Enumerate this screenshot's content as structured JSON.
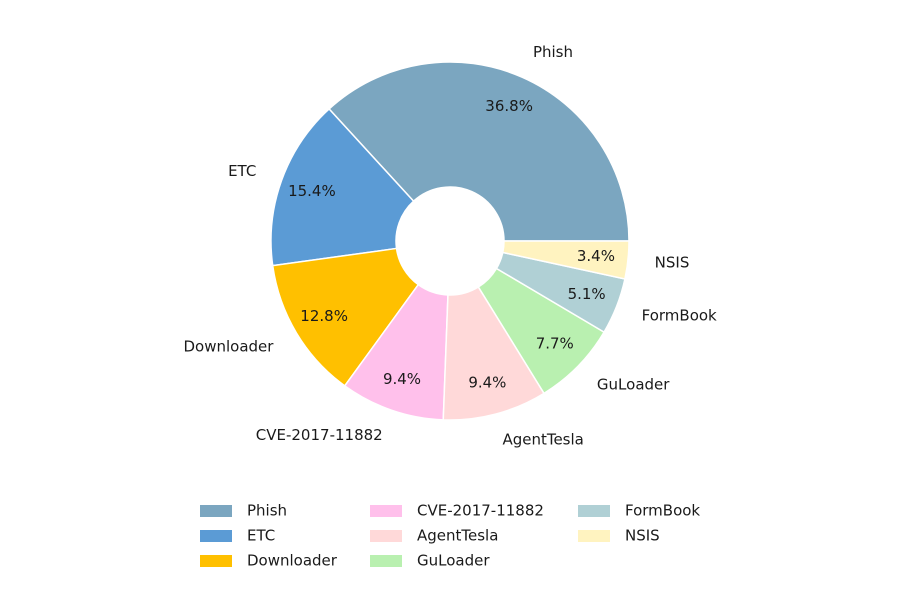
{
  "chart_data": {
    "type": "pie",
    "categories": [
      "Phish",
      "ETC",
      "Downloader",
      "CVE-2017-11882",
      "AgentTesla",
      "GuLoader",
      "FormBook",
      "NSIS"
    ],
    "values": [
      36.8,
      15.4,
      12.8,
      9.4,
      9.4,
      7.7,
      5.1,
      3.4
    ],
    "value_labels": [
      "36.8%",
      "15.4%",
      "12.8%",
      "9.4%",
      "9.4%",
      "7.7%",
      "5.1%",
      "3.4%"
    ],
    "colors": [
      "#7ba6c0",
      "#5b9bd5",
      "#ffc000",
      "#ffc0eb",
      "#ffd9d9",
      "#b9f0b0",
      "#b0d0d5",
      "#fff3c0"
    ],
    "legend": "bottom"
  }
}
